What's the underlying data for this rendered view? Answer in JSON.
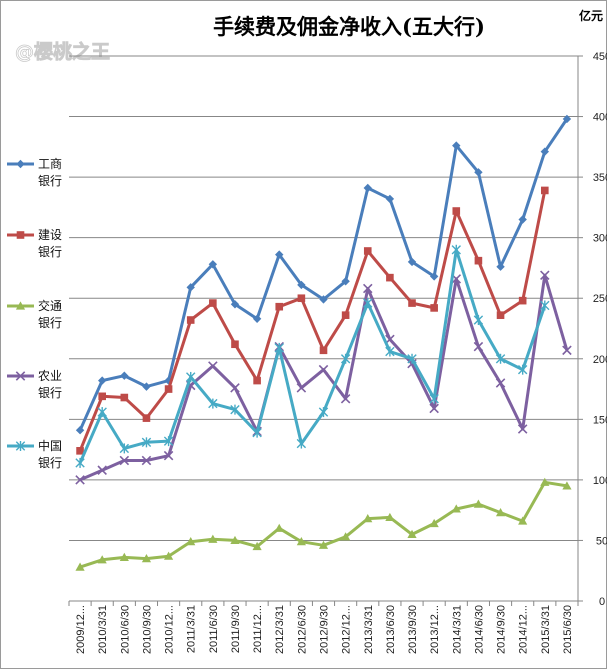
{
  "watermark": "@樱桃之王",
  "chart_data": {
    "type": "line",
    "title": "手续费及佣金净收入(五大行)",
    "unit": "亿元",
    "ylim": [
      0,
      450
    ],
    "yticks": [
      0,
      50,
      100,
      150,
      200,
      250,
      300,
      350,
      400,
      450
    ],
    "grid": true,
    "legend_position": "left",
    "categories": [
      "2009/12...",
      "2010/3/31",
      "2010/6/30",
      "2010/9/30",
      "2010/12...",
      "2011/3/31",
      "2011/6/30",
      "2011/9/30",
      "2011/12...",
      "2012/3/31",
      "2012/6/30",
      "2012/9/30",
      "2012/12...",
      "2013/3/31",
      "2013/6/30",
      "2013/9/30",
      "2013/12...",
      "2014/3/31",
      "2014/6/30",
      "2014/9/30",
      "2014/12...",
      "2015/3/31",
      "2015/6/30"
    ],
    "series": [
      {
        "name": "工商银行",
        "legend_lines": [
          "工商",
          "银行"
        ],
        "color": "#4a7ebb",
        "marker": "diamond",
        "values": [
          141,
          182,
          186,
          177,
          182,
          259,
          278,
          245,
          233,
          286,
          261,
          249,
          264,
          341,
          332,
          280,
          268,
          376,
          354,
          276,
          315,
          371,
          398
        ]
      },
      {
        "name": "建设银行",
        "legend_lines": [
          "建设",
          "银行"
        ],
        "color": "#be4b48",
        "marker": "square",
        "values": [
          124,
          169,
          168,
          151,
          175,
          232,
          246,
          212,
          182,
          243,
          250,
          207,
          236,
          289,
          267,
          246,
          242,
          322,
          281,
          236,
          248,
          339,
          null
        ]
      },
      {
        "name": "交通银行",
        "legend_lines": [
          "交通",
          "银行"
        ],
        "color": "#98b954",
        "marker": "triangle",
        "values": [
          28,
          34,
          36,
          35,
          37,
          49,
          51,
          50,
          45,
          60,
          49,
          46,
          53,
          68,
          69,
          55,
          64,
          76,
          80,
          73,
          66,
          98,
          95
        ]
      },
      {
        "name": "农业银行",
        "legend_lines": [
          "农业",
          "银行"
        ],
        "color": "#7d60a0",
        "marker": "x",
        "values": [
          100,
          108,
          116,
          116,
          120,
          178,
          194,
          176,
          140,
          210,
          176,
          191,
          167,
          258,
          216,
          196,
          159,
          266,
          210,
          180,
          142,
          269,
          207
        ]
      },
      {
        "name": "中国银行",
        "legend_lines": [
          "中国",
          "银行"
        ],
        "color": "#46aac5",
        "marker": "star",
        "values": [
          114,
          156,
          126,
          131,
          132,
          185,
          163,
          158,
          139,
          209,
          130,
          156,
          200,
          246,
          206,
          200,
          167,
          290,
          232,
          200,
          191,
          244,
          null
        ]
      }
    ]
  }
}
